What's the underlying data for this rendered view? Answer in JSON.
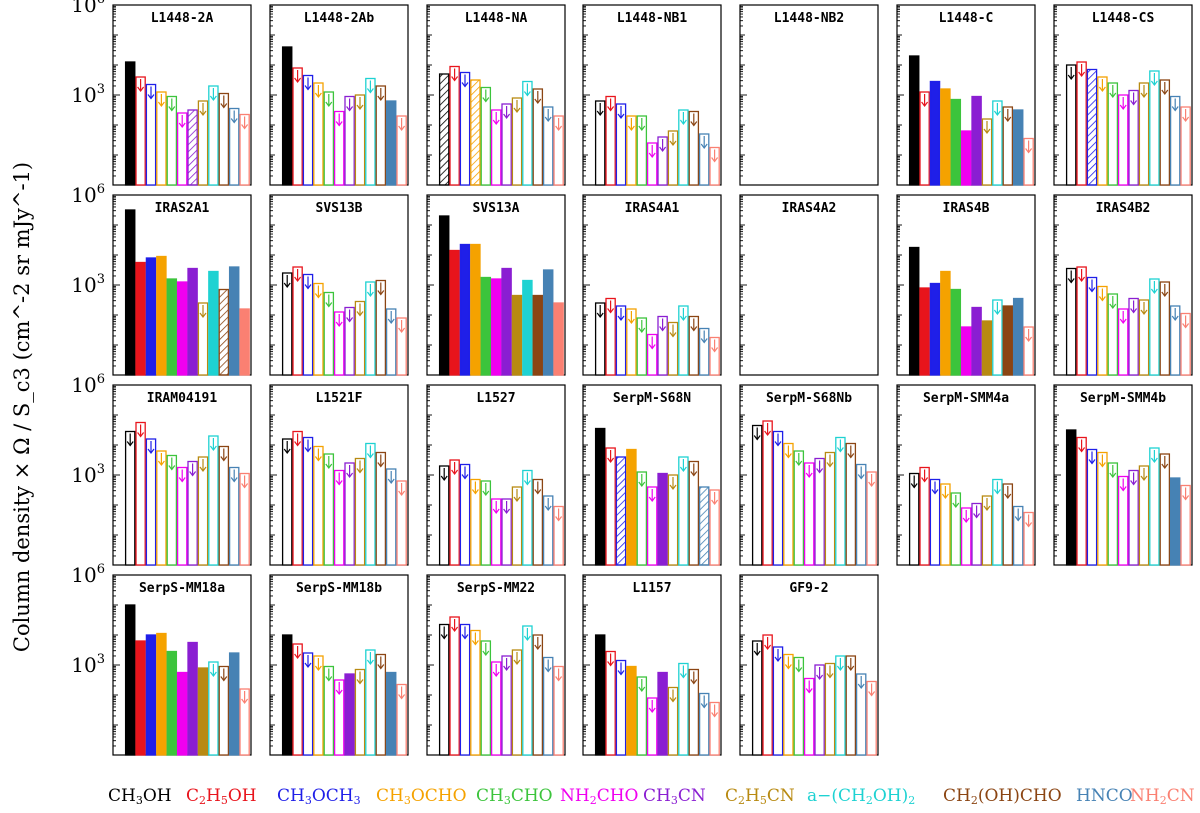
{
  "title": "Column density × Ω / S_c3 (cm^-2 sr mJy^-1)",
  "colors": {
    "CH3OH": "#000000",
    "C2H5OH": "#e8141c",
    "CH3OCH3": "#1f1fe8",
    "CH3OCHO": "#f5a200",
    "CH3CHO": "#3cc43c",
    "NH2CHO": "#f000f0",
    "CH3CN": "#8a1ed2",
    "C2H5CN": "#b88a12",
    "a-(CH2OH)2": "#1ed2d2",
    "CH2(OH)CHO": "#8b4513",
    "HNCO": "#4682b4",
    "NH2CN": "#fa8072"
  },
  "legend": {
    "items": [
      {
        "key": "CH3OH",
        "pre": "CH",
        "sub": "3",
        "post": "OH"
      },
      {
        "key": "C2H5OH",
        "pre": "C",
        "sub": "2",
        "mid": "H",
        "sub2": "5",
        "post": "OH"
      },
      {
        "key": "CH3OCH3",
        "pre": "CH",
        "sub": "3",
        "mid": "OCH",
        "sub2": "3",
        "post": ""
      },
      {
        "key": "CH3OCHO",
        "pre": "CH",
        "sub": "3",
        "post": "OCHO"
      },
      {
        "key": "CH3CHO",
        "pre": "CH",
        "sub": "3",
        "post": "CHO"
      },
      {
        "key": "NH2CHO",
        "pre": "NH",
        "sub": "2",
        "post": "CHO"
      },
      {
        "key": "CH3CN",
        "pre": "CH",
        "sub": "3",
        "post": "CN"
      },
      {
        "key": "C2H5CN",
        "pre": "C",
        "sub": "2",
        "mid": "H",
        "sub2": "5",
        "post": "CN"
      },
      {
        "key": "a-(CH2OH)2",
        "pre": "a−(CH",
        "sub": "2",
        "mid": "OH)",
        "sub2": "2",
        "post": ""
      },
      {
        "key": "CH2(OH)CHO",
        "pre": "CH",
        "sub": "2",
        "post": "(OH)CHO"
      },
      {
        "key": "HNCO",
        "pre": "HNCO",
        "sub": "",
        "post": ""
      },
      {
        "key": "NH2CN",
        "pre": "NH",
        "sub": "2",
        "post": "CN"
      }
    ]
  },
  "chart_data": {
    "type": "bar",
    "layout": "small multiples, 4 rows x 7 columns",
    "yscale": "log",
    "ylim": [
      1,
      1000000
    ],
    "yticks": [
      {
        "value": 1000,
        "label": "10^3"
      },
      {
        "value": 1000000,
        "label": "10^6"
      }
    ],
    "ylabel": "Column density × Ω / S_c3 (cm^-2 sr mJy^-1)",
    "species": [
      "CH3OH",
      "C2H5OH",
      "CH3OCH3",
      "CH3OCHO",
      "CH3CHO",
      "NH2CHO",
      "CH3CN",
      "C2H5CN",
      "a-(CH2OH)2",
      "CH2(OH)CHO",
      "HNCO",
      "NH2CN"
    ],
    "value_notation": "log10 of column density ratio; t: f = filled detection, u = upper limit (open bar, down arrow), h = hatched tentative",
    "panels": [
      {
        "name": "L1448-2A",
        "v": [
          4.1,
          3.6,
          3.35,
          3.1,
          2.95,
          2.4,
          2.5,
          2.8,
          3.3,
          3.05,
          2.55,
          2.35
        ],
        "t": [
          "f",
          "u",
          "u",
          "u",
          "u",
          "u",
          "h",
          "u",
          "u",
          "u",
          "u",
          "u"
        ]
      },
      {
        "name": "L1448-2Ab",
        "v": [
          4.6,
          3.9,
          3.65,
          3.4,
          3.1,
          2.45,
          2.95,
          3.0,
          3.55,
          3.3,
          2.8,
          2.3
        ],
        "t": [
          "f",
          "u",
          "u",
          "u",
          "u",
          "u",
          "u",
          "u",
          "u",
          "u",
          "f",
          "u"
        ]
      },
      {
        "name": "L1448-NA",
        "v": [
          3.7,
          3.95,
          3.75,
          3.5,
          3.25,
          2.5,
          2.7,
          2.9,
          3.45,
          3.2,
          2.6,
          2.3
        ],
        "t": [
          "h",
          "u",
          "u",
          "h",
          "u",
          "u",
          "u",
          "u",
          "u",
          "u",
          "u",
          "u"
        ]
      },
      {
        "name": "L1448-NB1",
        "v": [
          2.8,
          2.95,
          2.7,
          2.3,
          2.3,
          1.4,
          1.6,
          1.8,
          2.5,
          2.45,
          1.7,
          1.25
        ],
        "t": [
          "u",
          "u",
          "u",
          "u",
          "u",
          "u",
          "u",
          "u",
          "u",
          "u",
          "u",
          "u"
        ]
      },
      {
        "name": "L1448-NB2",
        "v": [],
        "t": []
      },
      {
        "name": "L1448-C",
        "v": [
          4.3,
          3.1,
          3.45,
          3.2,
          2.85,
          1.8,
          2.95,
          2.2,
          2.8,
          2.6,
          2.5,
          1.55
        ],
        "t": [
          "f",
          "u",
          "f",
          "f",
          "f",
          "f",
          "f",
          "u",
          "u",
          "u",
          "f",
          "u"
        ]
      },
      {
        "name": "L1448-CS",
        "v": [
          4.0,
          4.1,
          3.85,
          3.6,
          3.4,
          3.0,
          3.15,
          3.4,
          3.8,
          3.5,
          2.95,
          2.6
        ],
        "t": [
          "u",
          "u",
          "h",
          "u",
          "u",
          "u",
          "u",
          "u",
          "u",
          "u",
          "u",
          "u"
        ]
      },
      {
        "name": "IRAS2A1",
        "v": [
          5.5,
          3.75,
          3.9,
          3.95,
          3.2,
          3.1,
          3.55,
          2.4,
          3.45,
          2.85,
          3.6,
          2.2
        ],
        "t": [
          "f",
          "f",
          "f",
          "f",
          "f",
          "f",
          "f",
          "u",
          "f",
          "h",
          "f",
          "f"
        ]
      },
      {
        "name": "SVS13B",
        "v": [
          3.4,
          3.6,
          3.35,
          3.05,
          2.75,
          2.1,
          2.25,
          2.45,
          3.1,
          3.15,
          2.2,
          1.9
        ],
        "t": [
          "u",
          "u",
          "u",
          "u",
          "u",
          "u",
          "u",
          "u",
          "u",
          "u",
          "u",
          "u"
        ]
      },
      {
        "name": "SVS13A",
        "v": [
          5.3,
          4.15,
          4.35,
          4.35,
          3.25,
          3.2,
          3.55,
          2.65,
          3.15,
          2.65,
          3.5,
          2.4
        ],
        "t": [
          "f",
          "f",
          "f",
          "f",
          "f",
          "f",
          "f",
          "f",
          "f",
          "f",
          "f",
          "f"
        ]
      },
      {
        "name": "IRAS4A1",
        "v": [
          2.4,
          2.55,
          2.3,
          2.2,
          1.9,
          1.35,
          1.95,
          1.75,
          2.3,
          1.95,
          1.55,
          1.25
        ],
        "t": [
          "u",
          "u",
          "u",
          "u",
          "u",
          "u",
          "u",
          "u",
          "u",
          "u",
          "u",
          "u"
        ]
      },
      {
        "name": "IRAS4A2",
        "v": [],
        "t": []
      },
      {
        "name": "IRAS4B",
        "v": [
          4.25,
          2.9,
          3.05,
          3.45,
          2.85,
          1.6,
          2.25,
          1.8,
          2.5,
          2.3,
          2.55,
          1.6
        ],
        "t": [
          "f",
          "f",
          "f",
          "f",
          "f",
          "f",
          "f",
          "f",
          "u",
          "f",
          "f",
          "u"
        ]
      },
      {
        "name": "IRAS4B2",
        "v": [
          3.55,
          3.6,
          3.25,
          2.95,
          2.7,
          2.2,
          2.55,
          2.5,
          3.2,
          3.1,
          2.3,
          2.05
        ],
        "t": [
          "u",
          "u",
          "u",
          "u",
          "u",
          "u",
          "u",
          "u",
          "u",
          "u",
          "u",
          "u"
        ]
      },
      {
        "name": "IRAM04191",
        "v": [
          4.45,
          4.75,
          4.2,
          3.8,
          3.65,
          3.25,
          3.45,
          3.6,
          4.3,
          3.95,
          3.25,
          3.05
        ],
        "t": [
          "u",
          "u",
          "u",
          "u",
          "u",
          "u",
          "u",
          "u",
          "u",
          "u",
          "u",
          "u"
        ]
      },
      {
        "name": "L1521F",
        "v": [
          4.2,
          4.45,
          4.25,
          3.95,
          3.7,
          3.15,
          3.4,
          3.55,
          4.05,
          3.75,
          3.2,
          2.8
        ],
        "t": [
          "u",
          "u",
          "u",
          "u",
          "u",
          "u",
          "u",
          "u",
          "u",
          "u",
          "u",
          "u"
        ]
      },
      {
        "name": "L1527",
        "v": [
          3.3,
          3.5,
          3.35,
          2.85,
          2.8,
          2.2,
          2.2,
          2.6,
          3.15,
          2.85,
          2.3,
          1.95
        ],
        "t": [
          "u",
          "u",
          "u",
          "u",
          "u",
          "u",
          "u",
          "u",
          "u",
          "u",
          "u",
          "u"
        ]
      },
      {
        "name": "SerpM-S68N",
        "v": [
          4.55,
          3.9,
          3.6,
          3.85,
          3.1,
          2.6,
          3.05,
          3.0,
          3.6,
          3.45,
          2.6,
          2.5
        ],
        "t": [
          "f",
          "u",
          "h",
          "f",
          "u",
          "u",
          "f",
          "u",
          "u",
          "u",
          "h",
          "u"
        ]
      },
      {
        "name": "SerpM-S68Nb",
        "v": [
          4.65,
          4.8,
          4.45,
          4.05,
          3.8,
          3.4,
          3.55,
          3.75,
          4.25,
          4.05,
          3.35,
          3.1
        ],
        "t": [
          "u",
          "u",
          "u",
          "u",
          "u",
          "u",
          "u",
          "u",
          "u",
          "u",
          "u",
          "u"
        ]
      },
      {
        "name": "SerpM-SMM4a",
        "v": [
          3.05,
          3.25,
          2.85,
          2.7,
          2.4,
          1.9,
          2.05,
          2.3,
          2.85,
          2.7,
          1.95,
          1.75
        ],
        "t": [
          "u",
          "u",
          "u",
          "u",
          "u",
          "u",
          "u",
          "u",
          "u",
          "u",
          "u",
          "u"
        ]
      },
      {
        "name": "SerpM-SMM4b",
        "v": [
          4.5,
          4.25,
          3.85,
          3.75,
          3.4,
          2.95,
          3.15,
          3.3,
          3.9,
          3.7,
          2.9,
          2.65
        ],
        "t": [
          "f",
          "u",
          "u",
          "u",
          "u",
          "u",
          "u",
          "u",
          "u",
          "u",
          "f",
          "u"
        ]
      },
      {
        "name": "SerpS-MM18a",
        "v": [
          5.0,
          3.8,
          4.0,
          4.05,
          3.45,
          2.75,
          3.75,
          2.9,
          3.1,
          2.95,
          3.4,
          2.2
        ],
        "t": [
          "f",
          "f",
          "f",
          "f",
          "f",
          "f",
          "f",
          "f",
          "u",
          "u",
          "f",
          "u"
        ]
      },
      {
        "name": "SerpS-MM18b",
        "v": [
          4.0,
          3.7,
          3.4,
          3.3,
          2.95,
          2.5,
          2.7,
          2.85,
          3.5,
          3.35,
          2.75,
          2.35
        ],
        "t": [
          "f",
          "u",
          "u",
          "u",
          "u",
          "u",
          "f",
          "u",
          "u",
          "u",
          "f",
          "u"
        ]
      },
      {
        "name": "SerpS-MM22",
        "v": [
          4.35,
          4.6,
          4.35,
          4.15,
          3.8,
          3.1,
          3.3,
          3.5,
          4.3,
          4.0,
          3.25,
          2.95
        ],
        "t": [
          "u",
          "u",
          "u",
          "u",
          "u",
          "u",
          "u",
          "u",
          "u",
          "u",
          "u",
          "u"
        ]
      },
      {
        "name": "L1157",
        "v": [
          4.0,
          3.45,
          3.15,
          2.95,
          2.6,
          1.9,
          2.75,
          2.25,
          3.05,
          2.85,
          2.05,
          1.75
        ],
        "t": [
          "f",
          "u",
          "u",
          "f",
          "u",
          "u",
          "f",
          "u",
          "u",
          "u",
          "u",
          "u"
        ]
      },
      {
        "name": "GF9-2",
        "v": [
          3.8,
          4.0,
          3.6,
          3.35,
          3.25,
          2.55,
          3.0,
          3.05,
          3.3,
          3.3,
          2.7,
          2.45
        ],
        "t": [
          "u",
          "u",
          "u",
          "u",
          "u",
          "u",
          "u",
          "u",
          "u",
          "u",
          "u",
          "u"
        ]
      }
    ]
  }
}
